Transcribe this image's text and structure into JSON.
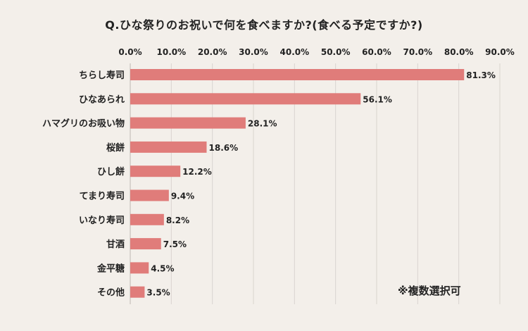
{
  "chart_data": {
    "type": "bar",
    "orientation": "horizontal",
    "title": "Q.ひな祭りのお祝いで何を食べますか?(食べる予定ですか?)",
    "categories": [
      "ちらし寿司",
      "ひなあられ",
      "ハマグリのお吸い物",
      "桜餅",
      "ひし餅",
      "てまり寿司",
      "いなり寿司",
      "甘酒",
      "金平糖",
      "その他"
    ],
    "values": [
      81.3,
      56.1,
      28.1,
      18.6,
      12.2,
      9.4,
      8.2,
      7.5,
      4.5,
      3.5
    ],
    "value_labels": [
      "81.3%",
      "56.1%",
      "28.1%",
      "18.6%",
      "12.2%",
      "9.4%",
      "8.2%",
      "7.5%",
      "4.5%",
      "3.5%"
    ],
    "xlim": [
      0,
      90
    ],
    "ticks": [
      "0.0%",
      "10.0%",
      "20.0%",
      "30.0%",
      "40.0%",
      "50.0%",
      "60.0%",
      "70.0%",
      "80.0%",
      "90.0%"
    ],
    "grid": true,
    "note": "※複数選択可",
    "bar_color": "#e07c7a",
    "grid_color": "#d9d4cf",
    "background": "#f3efea"
  }
}
